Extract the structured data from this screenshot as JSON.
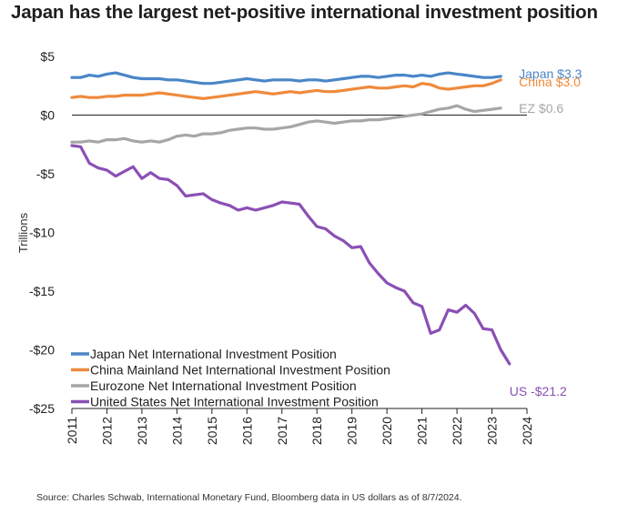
{
  "title": "Japan has the largest net-positive international investment position",
  "source": "Source: Charles Schwab, International Monetary Fund, Bloomberg data in US dollars as of 8/7/2024.",
  "chart_data": {
    "type": "line",
    "title": "Japan has the largest net-positive international investment position",
    "xlabel": "",
    "ylabel": "Trillions",
    "xlim": [
      2011,
      2024
    ],
    "ylim": [
      -25,
      5
    ],
    "x_ticks": [
      "2011",
      "2012",
      "2013",
      "2014",
      "2015",
      "2016",
      "2017",
      "2018",
      "2019",
      "2020",
      "2021",
      "2022",
      "2023",
      "2024"
    ],
    "y_ticks": [
      {
        "value": 5,
        "label": "$5"
      },
      {
        "value": 0,
        "label": "$0"
      },
      {
        "value": -5,
        "label": "-$5"
      },
      {
        "value": -10,
        "label": "-$10"
      },
      {
        "value": -15,
        "label": "-$15"
      },
      {
        "value": -20,
        "label": "-$20"
      },
      {
        "value": -25,
        "label": "-$25"
      }
    ],
    "grid": false,
    "legend_position": "bottom-left",
    "series": [
      {
        "name": "Japan Net International Investment Position",
        "color": "#4a86c8",
        "end_label": "Japan $3.3",
        "x": [
          2011.0,
          2011.25,
          2011.5,
          2011.75,
          2012.0,
          2012.25,
          2012.5,
          2012.75,
          2013.0,
          2013.25,
          2013.5,
          2013.75,
          2014.0,
          2014.25,
          2014.5,
          2014.75,
          2015.0,
          2015.25,
          2015.5,
          2015.75,
          2016.0,
          2016.25,
          2016.5,
          2016.75,
          2017.0,
          2017.25,
          2017.5,
          2017.75,
          2018.0,
          2018.25,
          2018.5,
          2018.75,
          2019.0,
          2019.25,
          2019.5,
          2019.75,
          2020.0,
          2020.25,
          2020.5,
          2020.75,
          2021.0,
          2021.25,
          2021.5,
          2021.75,
          2022.0,
          2022.25,
          2022.5,
          2022.75,
          2023.0,
          2023.25
        ],
        "values": [
          3.2,
          3.2,
          3.4,
          3.3,
          3.5,
          3.6,
          3.4,
          3.2,
          3.1,
          3.1,
          3.1,
          3.0,
          3.0,
          2.9,
          2.8,
          2.7,
          2.7,
          2.8,
          2.9,
          3.0,
          3.1,
          3.0,
          2.9,
          3.0,
          3.0,
          3.0,
          2.9,
          3.0,
          3.0,
          2.9,
          3.0,
          3.1,
          3.2,
          3.3,
          3.3,
          3.2,
          3.3,
          3.4,
          3.4,
          3.3,
          3.4,
          3.3,
          3.5,
          3.6,
          3.5,
          3.4,
          3.3,
          3.2,
          3.2,
          3.3
        ]
      },
      {
        "name": "China Mainland Net International Investment Position",
        "color": "#ef8a3c",
        "end_label": "China $3.0",
        "x": [
          2011.0,
          2011.25,
          2011.5,
          2011.75,
          2012.0,
          2012.25,
          2012.5,
          2012.75,
          2013.0,
          2013.25,
          2013.5,
          2013.75,
          2014.0,
          2014.25,
          2014.5,
          2014.75,
          2015.0,
          2015.25,
          2015.5,
          2015.75,
          2016.0,
          2016.25,
          2016.5,
          2016.75,
          2017.0,
          2017.25,
          2017.5,
          2017.75,
          2018.0,
          2018.25,
          2018.5,
          2018.75,
          2019.0,
          2019.25,
          2019.5,
          2019.75,
          2020.0,
          2020.25,
          2020.5,
          2020.75,
          2021.0,
          2021.25,
          2021.5,
          2021.75,
          2022.0,
          2022.25,
          2022.5,
          2022.75,
          2023.0,
          2023.25
        ],
        "values": [
          1.5,
          1.6,
          1.5,
          1.5,
          1.6,
          1.6,
          1.7,
          1.7,
          1.7,
          1.8,
          1.9,
          1.8,
          1.7,
          1.6,
          1.5,
          1.4,
          1.5,
          1.6,
          1.7,
          1.8,
          1.9,
          2.0,
          1.9,
          1.8,
          1.9,
          2.0,
          1.9,
          2.0,
          2.1,
          2.0,
          2.0,
          2.1,
          2.2,
          2.3,
          2.4,
          2.3,
          2.3,
          2.4,
          2.5,
          2.4,
          2.7,
          2.6,
          2.3,
          2.2,
          2.3,
          2.4,
          2.5,
          2.5,
          2.7,
          3.0
        ]
      },
      {
        "name": "Eurozone Net International Investment Position",
        "color": "#a6a6a6",
        "end_label": "EZ $0.6",
        "x": [
          2011.0,
          2011.25,
          2011.5,
          2011.75,
          2012.0,
          2012.25,
          2012.5,
          2012.75,
          2013.0,
          2013.25,
          2013.5,
          2013.75,
          2014.0,
          2014.25,
          2014.5,
          2014.75,
          2015.0,
          2015.25,
          2015.5,
          2015.75,
          2016.0,
          2016.25,
          2016.5,
          2016.75,
          2017.0,
          2017.25,
          2017.5,
          2017.75,
          2018.0,
          2018.25,
          2018.5,
          2018.75,
          2019.0,
          2019.25,
          2019.5,
          2019.75,
          2020.0,
          2020.25,
          2020.5,
          2020.75,
          2021.0,
          2021.25,
          2021.5,
          2021.75,
          2022.0,
          2022.25,
          2022.5,
          2022.75,
          2023.0,
          2023.25
        ],
        "values": [
          -2.3,
          -2.3,
          -2.2,
          -2.3,
          -2.1,
          -2.1,
          -2.0,
          -2.2,
          -2.3,
          -2.2,
          -2.3,
          -2.1,
          -1.8,
          -1.7,
          -1.8,
          -1.6,
          -1.6,
          -1.5,
          -1.3,
          -1.2,
          -1.1,
          -1.1,
          -1.2,
          -1.2,
          -1.1,
          -1.0,
          -0.8,
          -0.6,
          -0.5,
          -0.6,
          -0.7,
          -0.6,
          -0.5,
          -0.5,
          -0.4,
          -0.4,
          -0.3,
          -0.2,
          -0.1,
          0.0,
          0.1,
          0.3,
          0.5,
          0.6,
          0.8,
          0.5,
          0.3,
          0.4,
          0.5,
          0.6
        ]
      },
      {
        "name": "United States Net International Investment Position",
        "color": "#8b4fb5",
        "end_label": "US -$21.2",
        "x": [
          2011.0,
          2011.25,
          2011.5,
          2011.75,
          2012.0,
          2012.25,
          2012.5,
          2012.75,
          2013.0,
          2013.25,
          2013.5,
          2013.75,
          2014.0,
          2014.25,
          2014.5,
          2014.75,
          2015.0,
          2015.25,
          2015.5,
          2015.75,
          2016.0,
          2016.25,
          2016.5,
          2016.75,
          2017.0,
          2017.25,
          2017.5,
          2017.75,
          2018.0,
          2018.25,
          2018.5,
          2018.75,
          2019.0,
          2019.25,
          2019.5,
          2019.75,
          2020.0,
          2020.25,
          2020.5,
          2020.75,
          2021.0,
          2021.25,
          2021.5,
          2021.75,
          2022.0,
          2022.25,
          2022.5,
          2022.75,
          2023.0,
          2023.25,
          2023.5
        ],
        "values": [
          -2.6,
          -2.7,
          -4.1,
          -4.5,
          -4.7,
          -5.2,
          -4.8,
          -4.4,
          -5.4,
          -4.9,
          -5.4,
          -5.5,
          -6.0,
          -6.9,
          -6.8,
          -6.7,
          -7.2,
          -7.5,
          -7.7,
          -8.1,
          -7.9,
          -8.1,
          -7.9,
          -7.7,
          -7.4,
          -7.5,
          -7.6,
          -8.6,
          -9.5,
          -9.7,
          -10.3,
          -10.7,
          -11.3,
          -11.2,
          -12.6,
          -13.5,
          -14.3,
          -14.7,
          -15.0,
          -16.0,
          -16.3,
          -18.6,
          -18.3,
          -16.6,
          -16.8,
          -16.2,
          -16.9,
          -18.2,
          -18.3,
          -20.0,
          -21.2
        ]
      }
    ]
  }
}
